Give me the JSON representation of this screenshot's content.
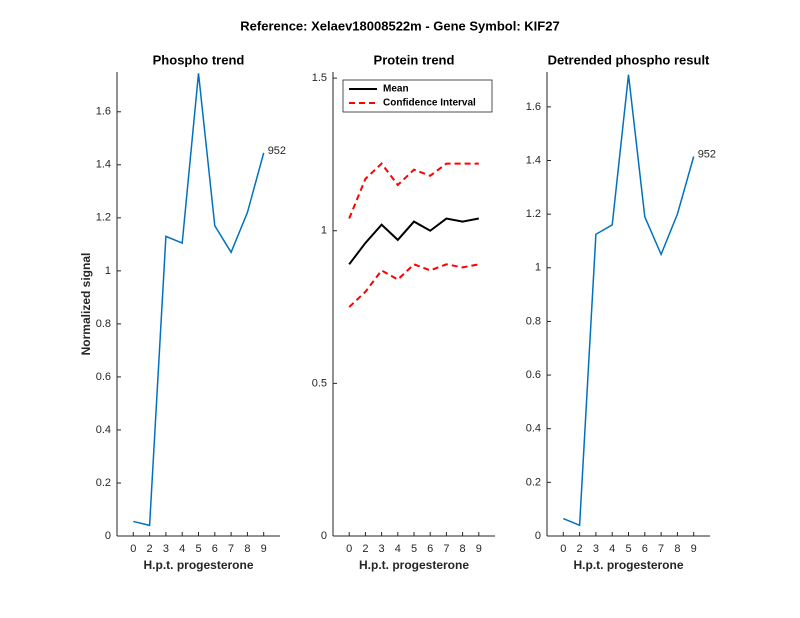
{
  "title": "Reference:  Xelaev18008522m - Gene Symbol:  KIF27",
  "chart_data": [
    {
      "type": "line",
      "title": "Phospho trend",
      "xlabel": "H.p.t. progesterone",
      "ylabel": "Normalized signal",
      "categories": [
        "0",
        "2",
        "3",
        "4",
        "5",
        "6",
        "7",
        "8",
        "9"
      ],
      "series": [
        {
          "color": "#0072bd",
          "values": [
            0.055,
            0.04,
            1.13,
            1.105,
            1.745,
            1.17,
            1.07,
            1.22,
            1.445
          ]
        }
      ],
      "annotation": "952",
      "ylim": [
        0,
        1.75
      ],
      "yticks": [
        0,
        0.2,
        0.4,
        0.6,
        0.8,
        1,
        1.2,
        1.4,
        1.6
      ],
      "grid": false
    },
    {
      "type": "band-line",
      "title": "Protein trend",
      "xlabel": "H.p.t. progesterone",
      "categories": [
        "0",
        "2",
        "3",
        "4",
        "5",
        "6",
        "7",
        "8",
        "9"
      ],
      "series": [
        {
          "name": "Mean",
          "color": "#000000",
          "values": [
            0.89,
            0.96,
            1.02,
            0.97,
            1.03,
            1.0,
            1.04,
            1.03,
            1.04
          ]
        },
        {
          "name": "Confidence Interval",
          "color": "#ff0000",
          "upper": [
            1.04,
            1.17,
            1.22,
            1.15,
            1.2,
            1.18,
            1.22,
            1.22,
            1.22
          ],
          "lower": [
            0.75,
            0.8,
            0.87,
            0.84,
            0.89,
            0.87,
            0.89,
            0.88,
            0.89
          ]
        }
      ],
      "legend": "northwest",
      "ylim": [
        0,
        1.52
      ],
      "yticks": [
        0,
        0.5,
        1,
        1.5
      ],
      "grid": false
    },
    {
      "type": "line",
      "title": "Detrended phospho result",
      "xlabel": "H.p.t. progesterone",
      "categories": [
        "0",
        "2",
        "3",
        "4",
        "5",
        "6",
        "7",
        "8",
        "9"
      ],
      "series": [
        {
          "color": "#0072bd",
          "values": [
            0.065,
            0.04,
            1.125,
            1.16,
            1.72,
            1.19,
            1.05,
            1.2,
            1.415
          ]
        }
      ],
      "annotation": "952",
      "ylim": [
        0,
        1.73
      ],
      "yticks": [
        0,
        0.2,
        0.4,
        0.6,
        0.8,
        1,
        1.2,
        1.4,
        1.6
      ],
      "grid": false
    }
  ]
}
